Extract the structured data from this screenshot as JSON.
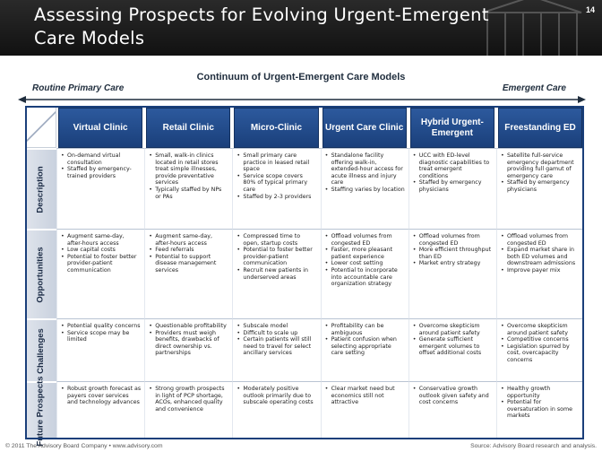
{
  "header": {
    "title": "Assessing Prospects for Evolving Urgent-Emergent Care Models",
    "page_number": "14"
  },
  "continuum": {
    "title": "Continuum of Urgent-Emergent Care Models",
    "left_label": "Routine Primary Care",
    "right_label": "Emergent Care"
  },
  "columns": [
    "Virtual Clinic",
    "Retail Clinic",
    "Micro-Clinic",
    "Urgent Care Clinic",
    "Hybrid Urgent-Emergent",
    "Freestanding ED"
  ],
  "rows": [
    {
      "label": "Description",
      "cells": [
        [
          "On-demand virtual consultation",
          "Staffed by emergency-trained providers"
        ],
        [
          "Small, walk-in clinics located in retail stores treat simple illnesses, provide preventative services",
          "Typically staffed by NPs or PAs"
        ],
        [
          "Small primary care practice in leased retail space",
          "Service scope covers 80% of typical primary care",
          "Staffed by 2-3 providers"
        ],
        [
          "Standalone facility offering walk-in, extended-hour access for acute illness and injury care",
          "Staffing varies by location"
        ],
        [
          "UCC with ED-level diagnostic capabilities to treat emergent conditions",
          "Staffed by emergency physicians"
        ],
        [
          "Satellite full-service emergency department providing full gamut of emergency care",
          "Staffed by emergency physicians"
        ]
      ]
    },
    {
      "label": "Opportunities",
      "cells": [
        [
          "Augment same-day, after-hours access",
          "Low capital costs",
          "Potential to foster better provider-patient communication"
        ],
        [
          "Augment same-day, after-hours access",
          "Feed referrals",
          "Potential to support disease management services"
        ],
        [
          "Compressed time to open, startup costs",
          "Potential to foster better provider-patient communication",
          "Recruit new patients in underserved areas"
        ],
        [
          "Offload volumes from congested ED",
          "Faster, more pleasant patient experience",
          "Lower cost setting",
          "Potential to incorporate into accountable care organization strategy"
        ],
        [
          "Offload volumes from congested ED",
          "More efficient throughput than ED",
          "Market entry strategy"
        ],
        [
          "Offload volumes from congested ED",
          "Expand market share in both ED volumes and downstream admissions",
          "Improve payer mix"
        ]
      ]
    },
    {
      "label": "Challenges",
      "cells": [
        [
          "Potential quality concerns",
          "Service scope may be limited"
        ],
        [
          "Questionable profitability",
          "Providers must weigh benefits, drawbacks of direct ownership vs. partnerships"
        ],
        [
          "Subscale model",
          "Difficult to scale up",
          "Certain patients will still need to travel for select ancillary services"
        ],
        [
          "Profitability can be ambiguous",
          "Patient confusion when selecting appropriate care setting"
        ],
        [
          "Overcome skepticism around patient safety",
          "Generate sufficient emergent volumes to offset additional costs"
        ],
        [
          "Overcome skepticism around patient safety",
          "Competitive concerns",
          "Legislation spurred by cost, overcapacity concerns"
        ]
      ]
    },
    {
      "label": "Future Prospects",
      "cells": [
        [
          "Robust growth forecast as payers cover services and technology advances"
        ],
        [
          "Strong growth prospects in light of PCP shortage, ACOs, enhanced quality and convenience"
        ],
        [
          "Moderately positive outlook primarily due to subscale operating costs"
        ],
        [
          "Clear market need but economics still not attractive"
        ],
        [
          "Conservative growth outlook given safety and cost concerns"
        ],
        [
          "Healthy growth opportunity",
          "Potential for oversaturation in some markets"
        ]
      ]
    }
  ],
  "footer": {
    "copyright": "© 2011 The Advisory Board Company • www.advisory.com",
    "source": "Source: Advisory Board research and analysis."
  },
  "colors": {
    "header_bg": "#1a1a1a",
    "column_header": "#1f4a8c",
    "row_header": "#d3d9e3"
  }
}
